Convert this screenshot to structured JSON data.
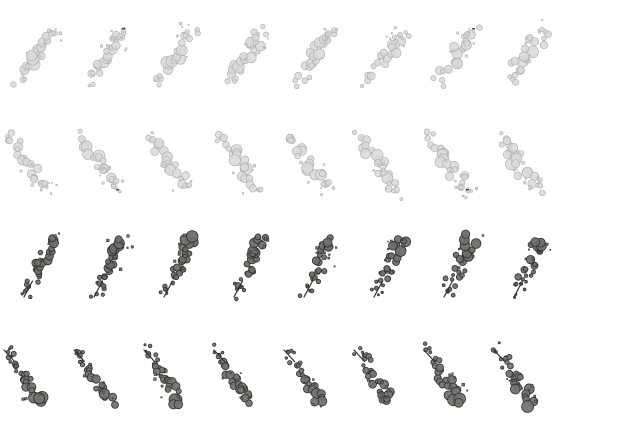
{
  "sprite_sheet": {
    "background": "#ffffff",
    "rows": [
      {
        "name": "light-smoke-rising",
        "frames": 8,
        "fill": "#d8d8d8",
        "stroke": "#aaaaaa",
        "speck": "#444444"
      },
      {
        "name": "light-smoke-falling",
        "frames": 8,
        "fill": "#d9d9d9",
        "stroke": "#a8a8a8",
        "speck": "#444444"
      },
      {
        "name": "dark-smoke-rising",
        "frames": 8,
        "fill": "#6e6e6a",
        "stroke": "#2e2e2c",
        "speck": "#8a8a86"
      },
      {
        "name": "dark-smoke-falling",
        "frames": 8,
        "fill": "#737370",
        "stroke": "#303030",
        "speck": "#8c8c88"
      }
    ]
  }
}
